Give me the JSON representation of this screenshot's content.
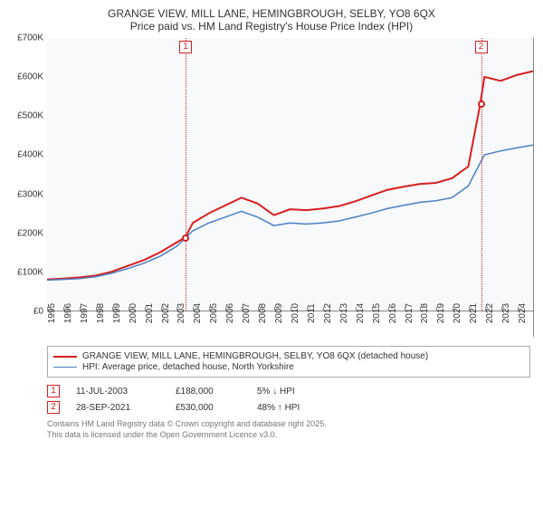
{
  "title": {
    "line1": "GRANGE VIEW, MILL LANE, HEMINGBROUGH, SELBY, YO8 6QX",
    "line2": "Price paid vs. HM Land Registry's House Price Index (HPI)",
    "fontsize": 12,
    "color": "#333333"
  },
  "chart": {
    "type": "line",
    "background_color": "#f7f9fb",
    "border_color": "#888888",
    "ylim": [
      0,
      700000
    ],
    "yticks": [
      0,
      100000,
      200000,
      300000,
      400000,
      500000,
      600000,
      700000
    ],
    "ytick_labels": [
      "£0",
      "£100K",
      "£200K",
      "£300K",
      "£400K",
      "£500K",
      "£600K",
      "£700K"
    ],
    "xlim": [
      1995,
      2025
    ],
    "xticks": [
      1995,
      1996,
      1997,
      1998,
      1999,
      2000,
      2001,
      2002,
      2003,
      2004,
      2005,
      2006,
      2007,
      2008,
      2009,
      2010,
      2011,
      2012,
      2013,
      2014,
      2015,
      2016,
      2017,
      2018,
      2019,
      2020,
      2021,
      2022,
      2023,
      2024
    ],
    "tick_fontsize": 10,
    "series": [
      {
        "name": "GRANGE VIEW, MILL LANE, HEMINGBROUGH, SELBY, YO8 6QX (detached house)",
        "color": "#d81e1e",
        "line_width": 2,
        "x": [
          1995,
          1996,
          1997,
          1998,
          1999,
          2000,
          2001,
          2002,
          2003,
          2003.53,
          2004,
          2005,
          2006,
          2007,
          2008,
          2009,
          2010,
          2011,
          2012,
          2013,
          2014,
          2015,
          2016,
          2017,
          2018,
          2019,
          2020,
          2021,
          2021.74,
          2022,
          2023,
          2024,
          2025
        ],
        "y": [
          80000,
          82000,
          85000,
          90000,
          100000,
          115000,
          130000,
          150000,
          175000,
          188000,
          225000,
          250000,
          270000,
          290000,
          275000,
          245000,
          260000,
          258000,
          262000,
          268000,
          280000,
          295000,
          310000,
          318000,
          325000,
          328000,
          340000,
          370000,
          530000,
          600000,
          590000,
          605000,
          615000
        ]
      },
      {
        "name": "HPI: Average price, detached house, North Yorkshire",
        "color": "#4a7fc4",
        "line_width": 1.5,
        "x": [
          1995,
          1996,
          1997,
          1998,
          1999,
          2000,
          2001,
          2002,
          2003,
          2004,
          2005,
          2006,
          2007,
          2008,
          2009,
          2010,
          2011,
          2012,
          2013,
          2014,
          2015,
          2016,
          2017,
          2018,
          2019,
          2020,
          2021,
          2022,
          2023,
          2024,
          2025
        ],
        "y": [
          78000,
          80000,
          82000,
          87000,
          96000,
          108000,
          122000,
          140000,
          165000,
          205000,
          225000,
          240000,
          255000,
          240000,
          218000,
          225000,
          222000,
          225000,
          230000,
          240000,
          250000,
          262000,
          270000,
          278000,
          282000,
          290000,
          320000,
          400000,
          410000,
          418000,
          425000
        ]
      }
    ],
    "markers": [
      {
        "id": "1",
        "x": 2003.53,
        "y": 188000,
        "box_y_top": true
      },
      {
        "id": "2",
        "x": 2021.74,
        "y": 530000,
        "box_y_top": true
      }
    ],
    "vline_color": "#e02020",
    "marker_box_border": "#d02020"
  },
  "legend": {
    "border_color": "#aaaaaa",
    "fontsize": 10,
    "items": [
      {
        "color": "#d81e1e",
        "width": 2,
        "label": "GRANGE VIEW, MILL LANE, HEMINGBROUGH, SELBY, YO8 6QX (detached house)"
      },
      {
        "color": "#4a7fc4",
        "width": 1.5,
        "label": "HPI: Average price, detached house, North Yorkshire"
      }
    ]
  },
  "footnotes": [
    {
      "id": "1",
      "date": "11-JUL-2003",
      "price": "£188,000",
      "pct": "5% ↓ HPI"
    },
    {
      "id": "2",
      "date": "28-SEP-2021",
      "price": "£530,000",
      "pct": "48% ↑ HPI"
    }
  ],
  "attribution": {
    "line1": "Contains HM Land Registry data © Crown copyright and database right 2025.",
    "line2": "This data is licensed under the Open Government Licence v3.0."
  }
}
